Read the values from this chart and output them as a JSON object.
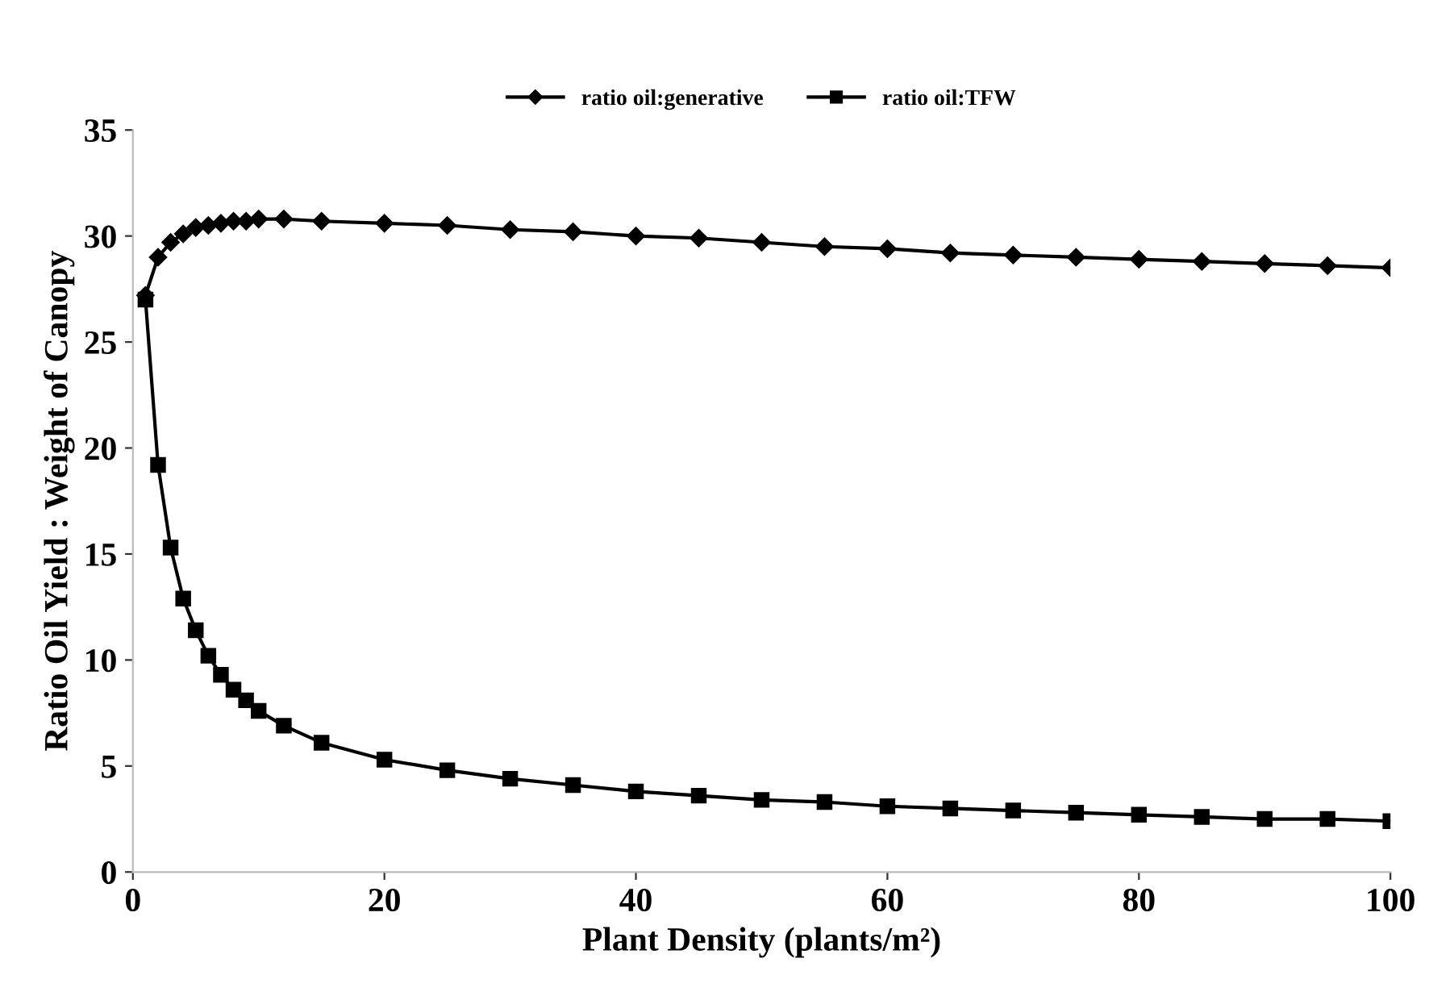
{
  "chart_data": {
    "type": "line",
    "xlabel": "Plant Density (plants/m²)",
    "ylabel": "Ratio Oil Yield : Weight of Canopy",
    "xlim": [
      0,
      100
    ],
    "xticks": [
      0,
      20,
      40,
      60,
      80,
      100
    ],
    "ylim": [
      0,
      35
    ],
    "yticks": [
      0,
      5,
      10,
      15,
      20,
      25,
      30,
      35
    ],
    "grid": false,
    "legend": "top",
    "line_style": "solid",
    "x": [
      1,
      2,
      3,
      4,
      5,
      6,
      7,
      8,
      9,
      10,
      12,
      15,
      20,
      25,
      30,
      35,
      40,
      45,
      50,
      55,
      60,
      65,
      70,
      75,
      80,
      85,
      90,
      95,
      100
    ],
    "series": [
      {
        "name": "ratio oil:generative",
        "color": "#000000",
        "marker": "diamond",
        "values": [
          27.2,
          29.0,
          29.7,
          30.1,
          30.4,
          30.5,
          30.6,
          30.7,
          30.7,
          30.8,
          30.8,
          30.7,
          30.6,
          30.5,
          30.3,
          30.2,
          30.0,
          29.9,
          29.7,
          29.5,
          29.4,
          29.2,
          29.1,
          29.0,
          28.9,
          28.8,
          28.7,
          28.6,
          28.5
        ]
      },
      {
        "name": "ratio oil:TFW",
        "color": "#000000",
        "marker": "square",
        "values": [
          27.0,
          19.2,
          15.3,
          12.9,
          11.4,
          10.2,
          9.3,
          8.6,
          8.1,
          7.6,
          6.9,
          6.1,
          5.3,
          4.8,
          4.4,
          4.1,
          3.8,
          3.6,
          3.4,
          3.3,
          3.1,
          3.0,
          2.9,
          2.8,
          2.7,
          2.6,
          2.5,
          2.5,
          2.4
        ]
      }
    ]
  }
}
